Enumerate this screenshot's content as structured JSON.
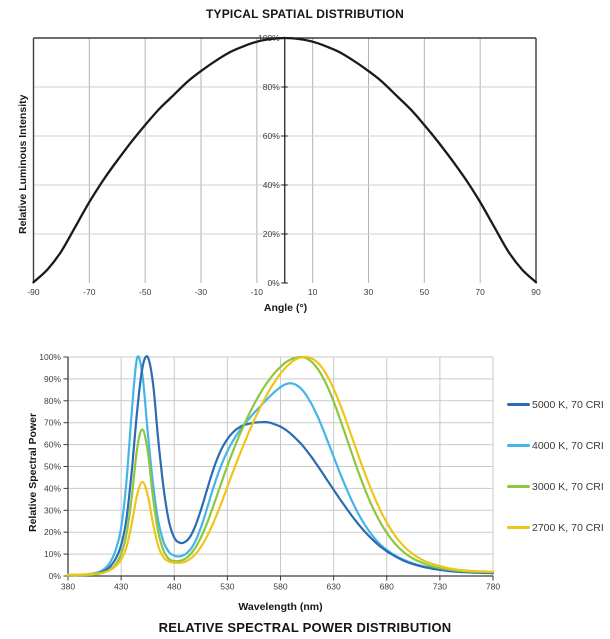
{
  "chart_data": [
    {
      "type": "line",
      "title": "TYPICAL SPATIAL DISTRIBUTION",
      "xlabel": "Angle (°)",
      "ylabel": "Relative Luminous Intensity",
      "xlim": [
        -90,
        90
      ],
      "ylim": [
        0,
        100
      ],
      "grid": "on",
      "x_ticks": [
        -90,
        -70,
        -50,
        -30,
        -10,
        10,
        30,
        50,
        70,
        90
      ],
      "y_ticks": [
        0,
        20,
        40,
        60,
        80,
        100
      ],
      "y_tick_labels": [
        "0%",
        "20%",
        "40%",
        "60%",
        "80%",
        "100%"
      ],
      "series": [
        {
          "name": "relative luminous intensity",
          "color": "#1a1a1a",
          "x": [
            -90,
            -85,
            -80,
            -75,
            -70,
            -65,
            -60,
            -55,
            -50,
            -45,
            -40,
            -35,
            -30,
            -25,
            -20,
            -15,
            -10,
            -5,
            0,
            5,
            10,
            15,
            20,
            25,
            30,
            35,
            40,
            45,
            50,
            55,
            60,
            65,
            70,
            75,
            80,
            85,
            90
          ],
          "values": [
            0.3,
            5.5,
            13,
            23,
            33,
            42,
            50,
            57.5,
            64.5,
            71,
            76.5,
            82,
            86.5,
            90.5,
            94,
            96.5,
            98.5,
            99.6,
            100,
            99.6,
            98.5,
            96.5,
            94,
            90.5,
            86.5,
            82,
            76.5,
            71,
            64.5,
            57.5,
            50,
            42,
            33,
            23,
            13,
            5.5,
            0.3
          ]
        }
      ]
    },
    {
      "type": "line",
      "title": "RELATIVE SPECTRAL POWER DISTRIBUTION",
      "xlabel": "Wavelength (nm)",
      "ylabel": "Relative Spectral Power",
      "xlim": [
        380,
        780
      ],
      "ylim": [
        0,
        100
      ],
      "grid": "on",
      "legend_position": "right",
      "x_ticks": [
        380,
        430,
        480,
        530,
        580,
        630,
        680,
        730,
        780
      ],
      "y_ticks": [
        0,
        10,
        20,
        30,
        40,
        50,
        60,
        70,
        80,
        90,
        100
      ],
      "y_tick_labels": [
        "0%",
        "10%",
        "20%",
        "30%",
        "40%",
        "50%",
        "60%",
        "70%",
        "80%",
        "90%",
        "100%"
      ],
      "x": [
        380,
        385,
        390,
        395,
        400,
        405,
        410,
        415,
        420,
        425,
        430,
        435,
        440,
        445,
        450,
        455,
        460,
        465,
        470,
        475,
        480,
        485,
        490,
        495,
        500,
        505,
        510,
        515,
        520,
        525,
        530,
        535,
        540,
        545,
        550,
        555,
        560,
        565,
        570,
        575,
        580,
        585,
        590,
        595,
        600,
        605,
        610,
        615,
        620,
        625,
        630,
        635,
        640,
        645,
        650,
        655,
        660,
        665,
        670,
        675,
        680,
        685,
        690,
        695,
        700,
        705,
        710,
        715,
        720,
        725,
        730,
        735,
        740,
        745,
        750,
        755,
        760,
        765,
        770,
        775,
        780
      ],
      "series": [
        {
          "name": "5000 K, 70 CRI",
          "color": "#2b6cb3",
          "values": [
            0.3,
            0.3,
            0.4,
            0.5,
            0.7,
            1,
            1.5,
            2.5,
            4.5,
            8,
            14,
            26,
            48,
            75,
            95,
            100,
            88,
            62,
            40,
            25,
            17.5,
            15.2,
            15.5,
            18,
            23,
            30,
            38,
            46,
            53,
            58.5,
            62.5,
            65.5,
            67.5,
            68.8,
            69.5,
            70,
            70.2,
            70.3,
            70,
            69.2,
            68.2,
            66.7,
            64.8,
            62.5,
            60,
            57,
            53.8,
            50.3,
            46.7,
            43,
            39.4,
            35.8,
            32.3,
            28.9,
            25.7,
            22.7,
            19.9,
            17.4,
            15.1,
            13.1,
            11.3,
            9.8,
            8.4,
            7.2,
            6.2,
            5.4,
            4.7,
            4.1,
            3.6,
            3.1,
            2.8,
            2.5,
            2.2,
            2,
            1.8,
            1.7,
            1.6,
            1.5,
            1.4,
            1.35,
            1.3
          ]
        },
        {
          "name": "4000 K, 70 CRI",
          "color": "#45b5e8",
          "values": [
            0.3,
            0.35,
            0.45,
            0.6,
            0.9,
            1.3,
            2,
            3.5,
            6.5,
            12,
            22,
            43,
            75,
            99.5,
            92,
            66,
            42,
            25,
            15.5,
            11,
            9.3,
            9,
            9.8,
            12,
            16,
            22,
            29.5,
            37.5,
            45,
            51.5,
            57,
            61.5,
            65.3,
            68.6,
            71.6,
            74.4,
            77,
            79.6,
            82,
            84.3,
            86.2,
            87.6,
            88,
            87.2,
            85.2,
            82,
            77.8,
            72.8,
            67,
            60.8,
            54.5,
            48.2,
            42.2,
            36.6,
            31.5,
            26.9,
            22.9,
            19.4,
            16.4,
            13.9,
            11.9,
            10.2,
            8.8,
            7.6,
            6.6,
            5.7,
            5,
            4.4,
            3.9,
            3.5,
            3.1,
            2.8,
            2.5,
            2.3,
            2.1,
            2,
            1.9,
            1.8,
            1.75,
            1.7,
            1.65
          ]
        },
        {
          "name": "3000 K, 70 CRI",
          "color": "#8dc63f",
          "values": [
            0.2,
            0.25,
            0.3,
            0.4,
            0.5,
            0.7,
            1.1,
            1.8,
            3,
            5.5,
            10,
            19,
            36,
            58,
            67,
            57,
            36,
            20,
            11.5,
            7.8,
            6.8,
            6.9,
            7.8,
            9.8,
            13,
            17.5,
            23,
            29.5,
            36.5,
            43.5,
            50.3,
            56.7,
            62.7,
            68.3,
            73.5,
            78.3,
            82.7,
            86.6,
            90,
            93,
            95.5,
            97.6,
            99,
            99.8,
            100,
            99.3,
            97.5,
            94.6,
            90.6,
            85.6,
            79.7,
            73.1,
            66.1,
            59,
            52,
            45.2,
            38.9,
            33.2,
            28.1,
            23.6,
            19.7,
            16.4,
            13.6,
            11.3,
            9.4,
            7.9,
            6.7,
            5.7,
            4.8,
            4.1,
            3.6,
            3.1,
            2.8,
            2.5,
            2.3,
            2.1,
            2,
            1.9,
            1.85,
            1.8,
            1.75
          ]
        },
        {
          "name": "2700 K, 70 CRI",
          "color": "#f0c519",
          "values": [
            0.6,
            0.65,
            0.7,
            0.75,
            0.85,
            1,
            1.3,
            1.8,
            2.8,
            4.6,
            7.5,
            13,
            24,
            37,
            43,
            37,
            24,
            13.5,
            8.5,
            6.6,
            6.1,
            6,
            6.5,
            7.8,
            10,
            13.2,
            17.3,
            22.3,
            28,
            34.2,
            40.7,
            47.2,
            53.5,
            59.6,
            65.4,
            70.9,
            76,
            80.8,
            85.2,
            89,
            92.4,
            95.2,
            97.5,
            99.1,
            99.9,
            100,
            99.2,
            97.4,
            94.5,
            90.5,
            85.5,
            79.7,
            73.3,
            66.5,
            59.6,
            52.7,
            46.1,
            39.9,
            34.2,
            29,
            24.4,
            20.4,
            17,
            14.2,
            11.8,
            9.9,
            8.3,
            7,
            6,
            5.2,
            4.5,
            3.9,
            3.4,
            3,
            2.7,
            2.5,
            2.3,
            2.2,
            2.1,
            2,
            1.95
          ]
        }
      ]
    }
  ]
}
